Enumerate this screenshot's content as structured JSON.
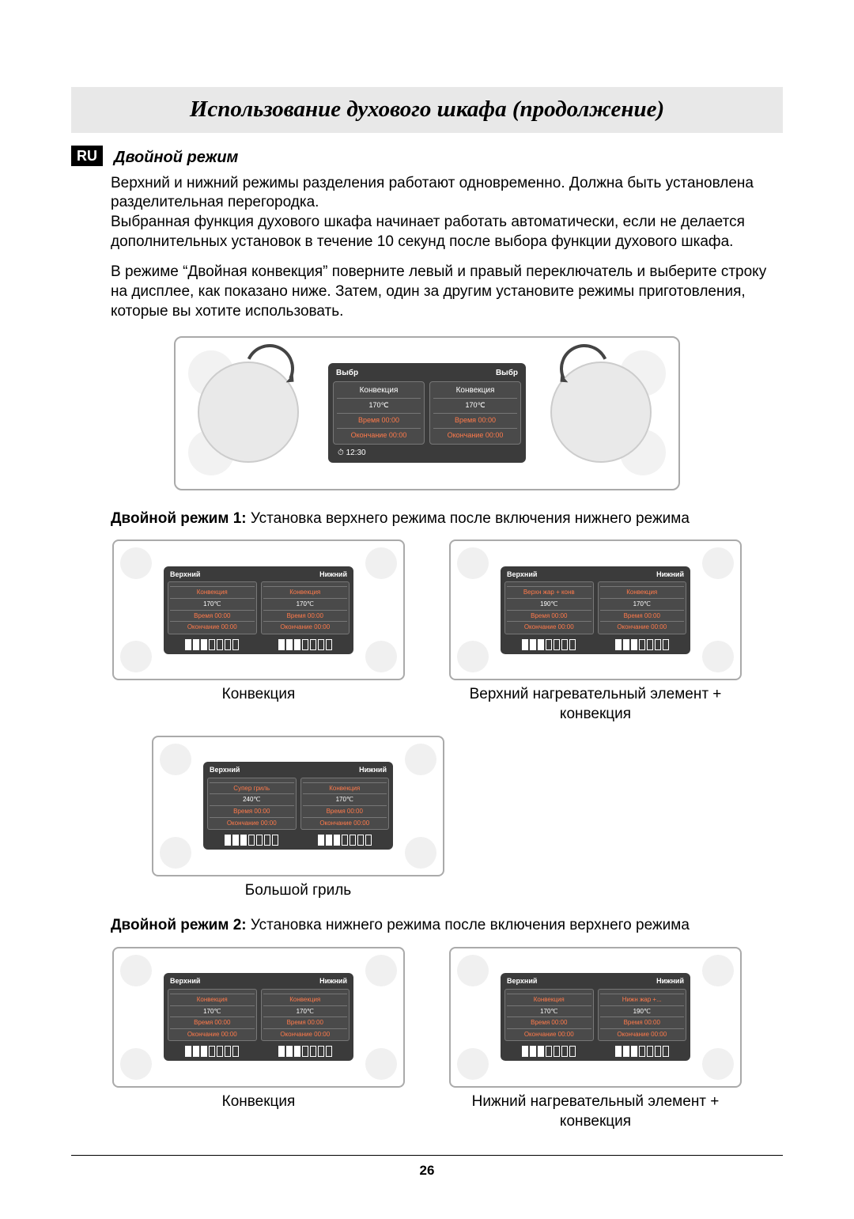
{
  "title": "Использование духового шкафа (продолжение)",
  "lang_badge": "RU",
  "subheading": "Двойной режим",
  "para1": "Верхний и нижний режимы разделения работают одновременно. Должна быть установлена разделительная перегородка.",
  "para2": "Выбранная функция духового шкафа начинает работать автоматически, если не делается дополнительных установок в течение 10 секунд после выбора функции духового шкафа.",
  "para3": "В режиме “Двойная конвекция” поверните левый и правый переключатель и выберите строку на дисплее, как показано ниже. Затем, один за другим установите режимы приготовления, которые вы хотите использовать.",
  "big_display": {
    "head_left": "Выбр",
    "head_right": "Выбр",
    "left": {
      "mode": "Конвекция",
      "temp": "170℃",
      "time": "Время 00:00",
      "end": "Окончание 00:00"
    },
    "right": {
      "mode": "Конвекция",
      "temp": "170℃",
      "time": "Время 00:00",
      "end": "Окончание 00:00"
    },
    "clock": "12:30"
  },
  "mode1_label": "Двойной режим 1:",
  "mode1_desc": "Установка верхнего режима после включения нижнего режима",
  "mode2_label": "Двойной режим 2:",
  "mode2_desc": "Установка нижнего режима после включения верхнего режима",
  "hd_upper": "Верхний",
  "hd_lower": "Нижний",
  "panels": {
    "m1a": {
      "caption": "Конвекция",
      "left": {
        "mode": "Конвекция",
        "temp": "170℃",
        "time": "Время 00:00",
        "end": "Окончание 00:00"
      },
      "right": {
        "mode": "Конвекция",
        "temp": "170℃",
        "time": "Время 00:00",
        "end": "Окончание 00:00"
      }
    },
    "m1b": {
      "caption": "Верхний нагревательный элемент + конвекция",
      "left": {
        "mode": "Верхн жар + конв",
        "temp": "190℃",
        "time": "Время 00:00",
        "end": "Окончание 00:00"
      },
      "right": {
        "mode": "Конвекция",
        "temp": "170℃",
        "time": "Время 00:00",
        "end": "Окончание 00:00"
      }
    },
    "m1c": {
      "caption": "Большой гриль",
      "left": {
        "mode": "Супер гриль",
        "temp": "240℃",
        "time": "Время 00:00",
        "end": "Окончание 00:00"
      },
      "right": {
        "mode": "Конвекция",
        "temp": "170℃",
        "time": "Время 00:00",
        "end": "Окончание 00:00"
      }
    },
    "m2a": {
      "caption": "Конвекция",
      "left": {
        "mode": "Конвекция",
        "temp": "170℃",
        "time": "Время 00:00",
        "end": "Окончание 00:00"
      },
      "right": {
        "mode": "Конвекция",
        "temp": "170℃",
        "time": "Время 00:00",
        "end": "Окончание 00:00"
      }
    },
    "m2b": {
      "caption": "Нижний нагревательный элемент + конвекция",
      "left": {
        "mode": "Конвекция",
        "temp": "170℃",
        "time": "Время 00:00",
        "end": "Окончание 00:00"
      },
      "right": {
        "mode": "Нижн жар +...",
        "temp": "190℃",
        "time": "Время 00:00",
        "end": "Окончание 00:00"
      }
    }
  },
  "bars_filled": 3,
  "bars_total": 7,
  "page_number": "26"
}
